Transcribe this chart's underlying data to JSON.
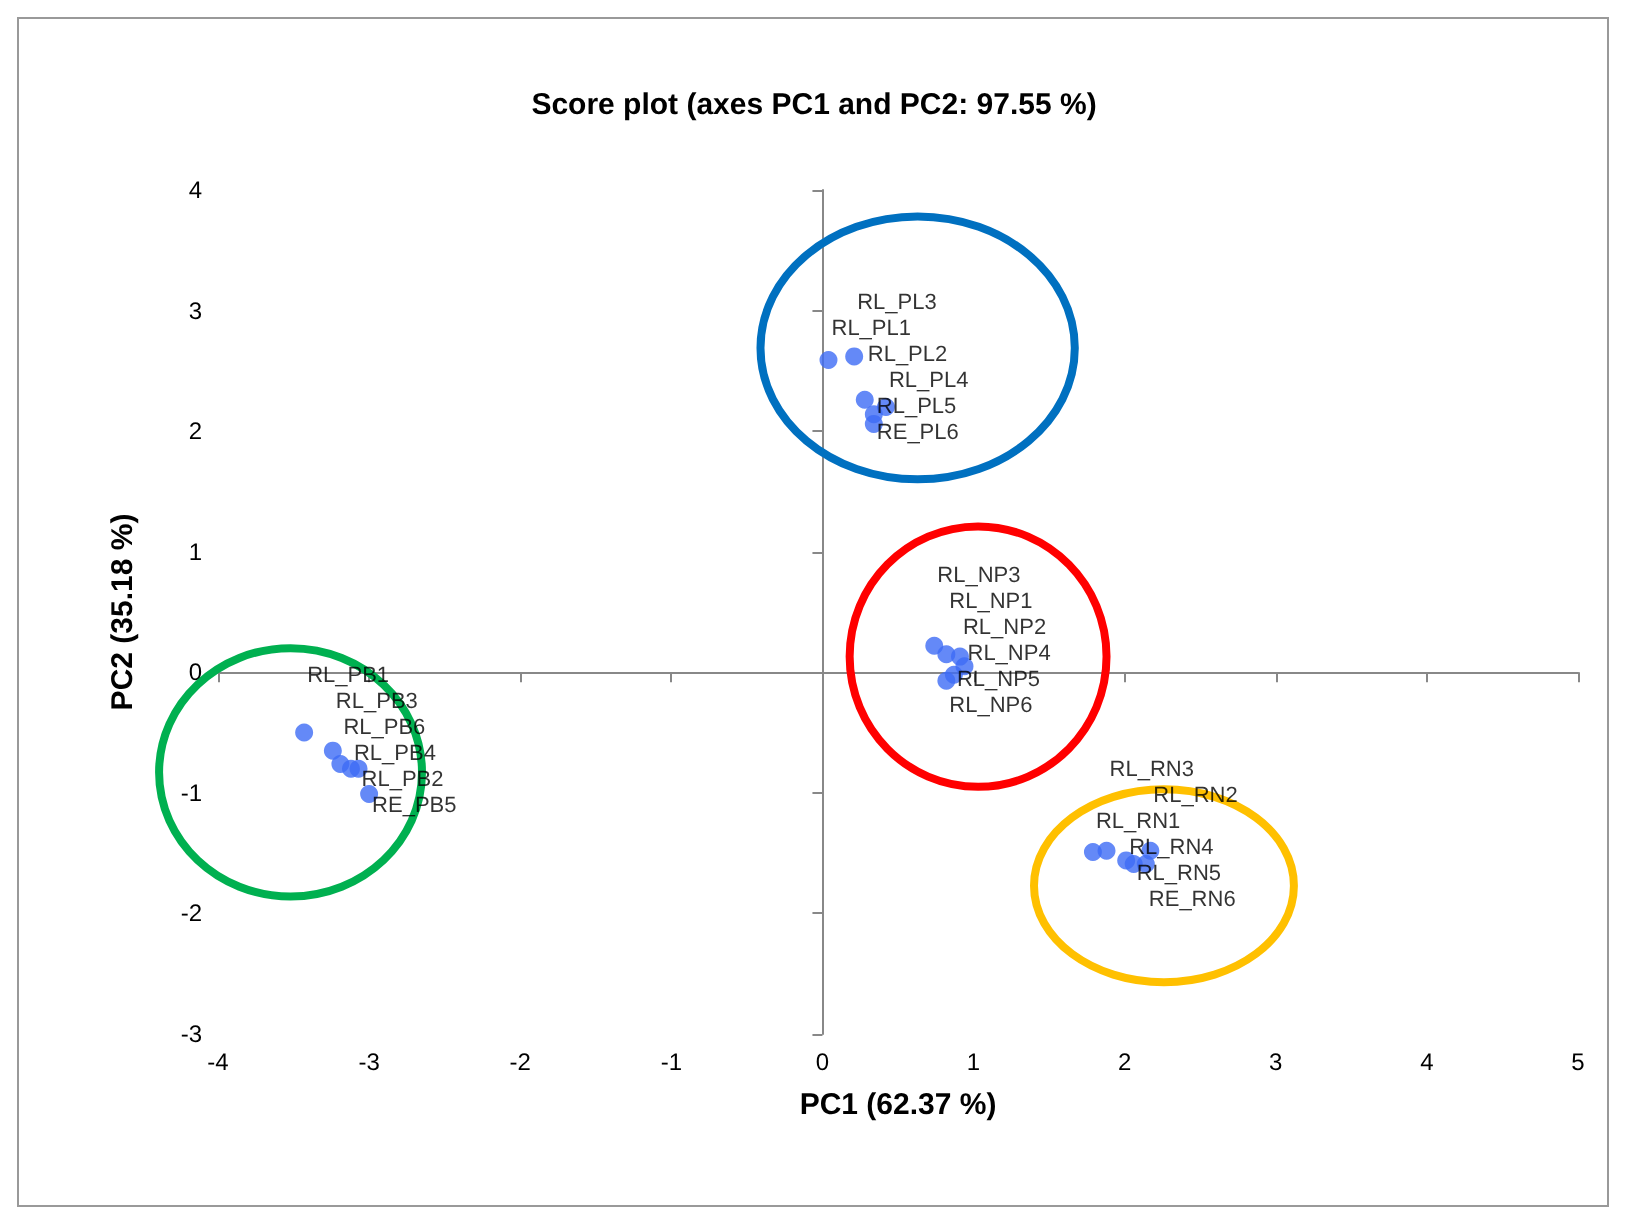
{
  "chart_data": {
    "type": "scatter",
    "title": "Score plot (axes PC1 and PC2: 97.55 %)",
    "xlabel": "PC1 (62.37 %)",
    "ylabel": "PC2 (35.18 %)",
    "xlim": [
      -4,
      5
    ],
    "xticks": [
      -4,
      -3,
      -2,
      -1,
      0,
      1,
      2,
      3,
      4,
      5
    ],
    "ylim": [
      -3,
      4
    ],
    "yticks": [
      -3,
      -2,
      -1,
      0,
      1,
      2,
      3,
      4
    ],
    "marker": "circle",
    "series": [
      {
        "color": "#3d6cf5",
        "x": [
          0.04,
          0.21,
          0.28,
          0.42,
          0.34,
          0.34,
          0.74,
          0.82,
          0.91,
          0.94,
          0.82,
          0.87,
          -3.43,
          -3.24,
          -3.19,
          -3.12,
          -3.07,
          -3.0,
          1.79,
          1.88,
          2.01,
          2.06,
          2.17,
          2.14
        ],
        "values": [
          2.59,
          2.62,
          2.26,
          2.2,
          2.14,
          2.06,
          0.22,
          0.15,
          0.13,
          0.05,
          -0.07,
          -0.02,
          -0.5,
          -0.65,
          -0.76,
          -0.8,
          -0.8,
          -1.01,
          -1.49,
          -1.48,
          -1.56,
          -1.59,
          -1.48,
          -1.59
        ],
        "value_labels": [
          "RL_PL1",
          "RL_PL3",
          "RL_PL2",
          "RL_PL4",
          "RL_PL5",
          "RE_PL6",
          "RL_NP3",
          "RL_NP1",
          "RL_NP2",
          "RL_NP4",
          "RL_NP6",
          "RL_NP5",
          "RL_PB1",
          "RL_PB3",
          "RL_PB6",
          "RL_PB4",
          "RL_PB2",
          "RE_PB5",
          "RL_RN1",
          "RL_RN3",
          "RL_RN4",
          "RL_RN5",
          "RL_RN2",
          "RE_RN6"
        ]
      }
    ]
  }
}
